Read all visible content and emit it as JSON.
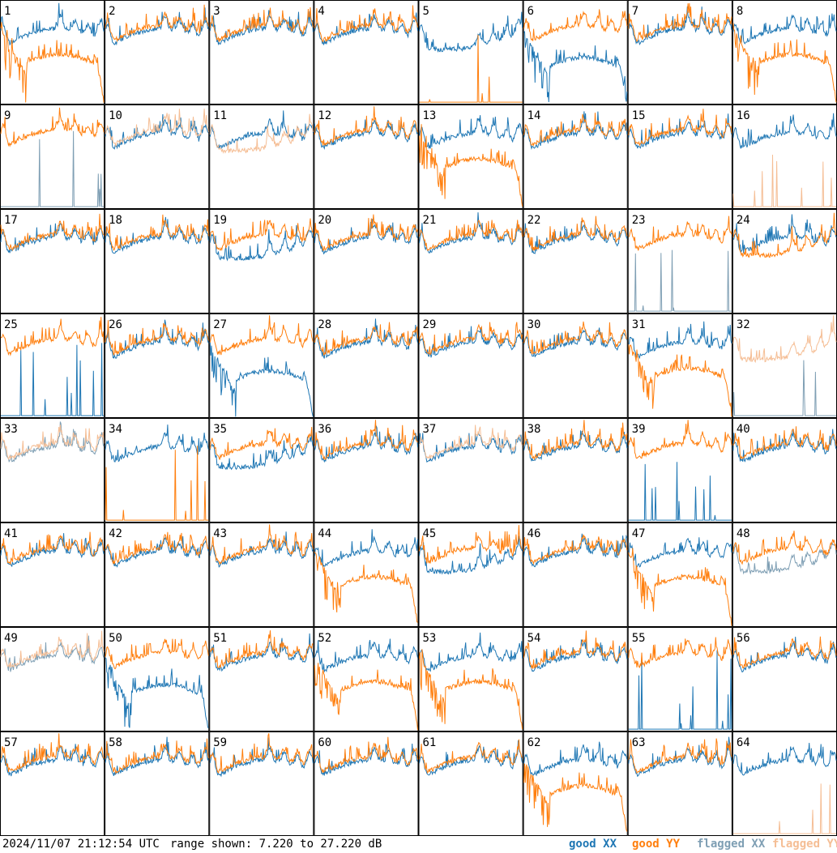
{
  "footer": {
    "timestamp": "2024/11/07 21:12:54 UTC",
    "range_label": "range shown: 7.220 to 27.220 dB"
  },
  "legend": [
    {
      "label": "good XX",
      "color": "#1f77b4"
    },
    {
      "label": "good YY",
      "color": "#ff7f0e"
    },
    {
      "label": "flagged XX",
      "color": "#7f9fb4"
    },
    {
      "label": "flagged YY",
      "color": "#f5be95"
    }
  ],
  "chart_data": {
    "type": "line",
    "grid_layout": {
      "rows": 8,
      "cols": 8
    },
    "y_range_db": [
      7.22,
      27.22
    ],
    "series_colors": {
      "good_xx": "#1f77b4",
      "good_yy": "#ff7f0e",
      "flagged_xx": "#7f9fb4",
      "flagged_yy": "#f5be95"
    },
    "tiles": [
      {
        "id": "1",
        "xx": "normal",
        "yy": "dip"
      },
      {
        "id": "2",
        "xx": "normal",
        "yy": "normal"
      },
      {
        "id": "3",
        "xx": "normal",
        "yy": "normal"
      },
      {
        "id": "4",
        "xx": "normal",
        "yy": "normal"
      },
      {
        "id": "5",
        "xx": "trough",
        "yy": "flat"
      },
      {
        "id": "6",
        "xx": "dip",
        "yy": "normal"
      },
      {
        "id": "7",
        "xx": "normal",
        "yy": "normal"
      },
      {
        "id": "8",
        "xx": "normal",
        "yy": "dip"
      },
      {
        "id": "9",
        "xx": "flat",
        "yy": "normal",
        "xx_flagged": true
      },
      {
        "id": "10",
        "xx": "normal",
        "yy": "normal",
        "yy_flagged": true
      },
      {
        "id": "11",
        "xx": "normal",
        "yy": "trough",
        "yy_flagged": true
      },
      {
        "id": "12",
        "xx": "normal",
        "yy": "normal"
      },
      {
        "id": "13",
        "xx": "normal",
        "yy": "dip"
      },
      {
        "id": "14",
        "xx": "normal",
        "yy": "normal"
      },
      {
        "id": "15",
        "xx": "normal",
        "yy": "normal"
      },
      {
        "id": "16",
        "xx": "normal",
        "yy": "flat",
        "yy_flagged": true
      },
      {
        "id": "17",
        "xx": "normal",
        "yy": "normal"
      },
      {
        "id": "18",
        "xx": "normal",
        "yy": "normal"
      },
      {
        "id": "19",
        "xx": "trough",
        "yy": "normal"
      },
      {
        "id": "20",
        "xx": "normal",
        "yy": "normal"
      },
      {
        "id": "21",
        "xx": "normal",
        "yy": "normal"
      },
      {
        "id": "22",
        "xx": "normal",
        "yy": "normal"
      },
      {
        "id": "23",
        "xx": "flat",
        "yy": "normal",
        "xx_flagged": true
      },
      {
        "id": "24",
        "xx": "normal",
        "yy": "trough"
      },
      {
        "id": "25",
        "xx": "flat",
        "yy": "normal"
      },
      {
        "id": "26",
        "xx": "normal",
        "yy": "normal"
      },
      {
        "id": "27",
        "xx": "dip",
        "yy": "normal"
      },
      {
        "id": "28",
        "xx": "normal",
        "yy": "normal"
      },
      {
        "id": "29",
        "xx": "normal",
        "yy": "normal"
      },
      {
        "id": "30",
        "xx": "normal",
        "yy": "normal"
      },
      {
        "id": "31",
        "xx": "normal",
        "yy": "dip"
      },
      {
        "id": "32",
        "xx": "flat",
        "yy": "trough",
        "xx_flagged": true,
        "yy_flagged": true
      },
      {
        "id": "33",
        "xx": "normal",
        "yy": "normal",
        "xx_flagged": true,
        "yy_flagged": true
      },
      {
        "id": "34",
        "xx": "normal",
        "yy": "flat"
      },
      {
        "id": "35",
        "xx": "trough",
        "yy": "normal"
      },
      {
        "id": "36",
        "xx": "normal",
        "yy": "normal"
      },
      {
        "id": "37",
        "xx": "normal",
        "yy": "normal",
        "yy_flagged": true
      },
      {
        "id": "38",
        "xx": "normal",
        "yy": "normal"
      },
      {
        "id": "39",
        "xx": "flat",
        "yy": "normal"
      },
      {
        "id": "40",
        "xx": "normal",
        "yy": "normal"
      },
      {
        "id": "41",
        "xx": "normal",
        "yy": "normal"
      },
      {
        "id": "42",
        "xx": "normal",
        "yy": "normal"
      },
      {
        "id": "43",
        "xx": "normal",
        "yy": "normal"
      },
      {
        "id": "44",
        "xx": "normal",
        "yy": "dip"
      },
      {
        "id": "45",
        "xx": "trough",
        "yy": "normal"
      },
      {
        "id": "46",
        "xx": "normal",
        "yy": "normal"
      },
      {
        "id": "47",
        "xx": "normal",
        "yy": "dip"
      },
      {
        "id": "48",
        "xx": "trough",
        "yy": "normal",
        "xx_flagged": true
      },
      {
        "id": "49",
        "xx": "normal",
        "yy": "normal",
        "xx_flagged": true,
        "yy_flagged": true
      },
      {
        "id": "50",
        "xx": "dip",
        "yy": "normal"
      },
      {
        "id": "51",
        "xx": "normal",
        "yy": "normal"
      },
      {
        "id": "52",
        "xx": "normal",
        "yy": "dip"
      },
      {
        "id": "53",
        "xx": "normal",
        "yy": "dip"
      },
      {
        "id": "54",
        "xx": "normal",
        "yy": "normal"
      },
      {
        "id": "55",
        "xx": "flat",
        "yy": "normal"
      },
      {
        "id": "56",
        "xx": "normal",
        "yy": "normal"
      },
      {
        "id": "57",
        "xx": "normal",
        "yy": "normal"
      },
      {
        "id": "58",
        "xx": "normal",
        "yy": "normal"
      },
      {
        "id": "59",
        "xx": "normal",
        "yy": "normal"
      },
      {
        "id": "60",
        "xx": "normal",
        "yy": "normal"
      },
      {
        "id": "61",
        "xx": "normal",
        "yy": "normal"
      },
      {
        "id": "62",
        "xx": "normal",
        "yy": "dip"
      },
      {
        "id": "63",
        "xx": "normal",
        "yy": "normal"
      },
      {
        "id": "64",
        "xx": "normal",
        "yy": "flat",
        "yy_flagged": true
      }
    ]
  }
}
